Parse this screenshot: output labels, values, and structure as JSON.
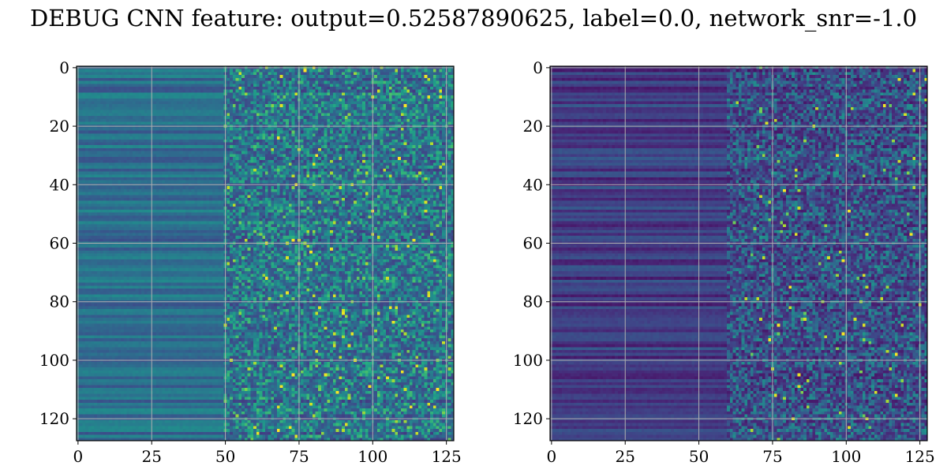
{
  "title": "DEBUG CNN feature: output=0.52587890625, label=0.0, network_snr=-1.0",
  "colors": {
    "colormap": "viridis",
    "grid": "#b0b0b0",
    "frame": "#000000",
    "background": "#ffffff"
  },
  "chart_data": [
    {
      "type": "heatmap",
      "panel": "left",
      "title": "",
      "xlabel": "",
      "ylabel": "",
      "rows": 128,
      "cols": 128,
      "xlim": [
        -0.5,
        127.5
      ],
      "ylim": [
        127.5,
        -0.5
      ],
      "grid": true,
      "x_ticks": [
        0,
        25,
        50,
        75,
        100,
        125
      ],
      "x_tick_labels": [
        "0",
        "25",
        "50",
        "75",
        "100",
        "125"
      ],
      "y_ticks": [
        0,
        20,
        40,
        60,
        80,
        100,
        120
      ],
      "y_tick_labels": [
        "0",
        "20",
        "40",
        "60",
        "80",
        "100",
        "120"
      ],
      "value_pattern": {
        "smooth_until_col": 50,
        "low_cols_mean": 0.36,
        "high_cols_mean": 0.22,
        "high_cols_spread": 0.45,
        "hot_fraction": 0.025,
        "seed": 7
      }
    },
    {
      "type": "heatmap",
      "panel": "right",
      "title": "",
      "xlabel": "",
      "ylabel": "",
      "rows": 128,
      "cols": 128,
      "xlim": [
        -0.5,
        127.5
      ],
      "ylim": [
        127.5,
        -0.5
      ],
      "grid": true,
      "x_ticks": [
        0,
        25,
        50,
        75,
        100,
        125
      ],
      "x_tick_labels": [
        "0",
        "25",
        "50",
        "75",
        "100",
        "125"
      ],
      "y_ticks": [
        0,
        20,
        40,
        60,
        80,
        100,
        120
      ],
      "y_tick_labels": [
        "0",
        "20",
        "40",
        "60",
        "80",
        "100",
        "120"
      ],
      "value_pattern": {
        "smooth_until_col": 60,
        "low_cols_mean": 0.18,
        "high_cols_mean": 0.1,
        "high_cols_spread": 0.4,
        "hot_fraction": 0.012,
        "seed": 19
      }
    }
  ]
}
